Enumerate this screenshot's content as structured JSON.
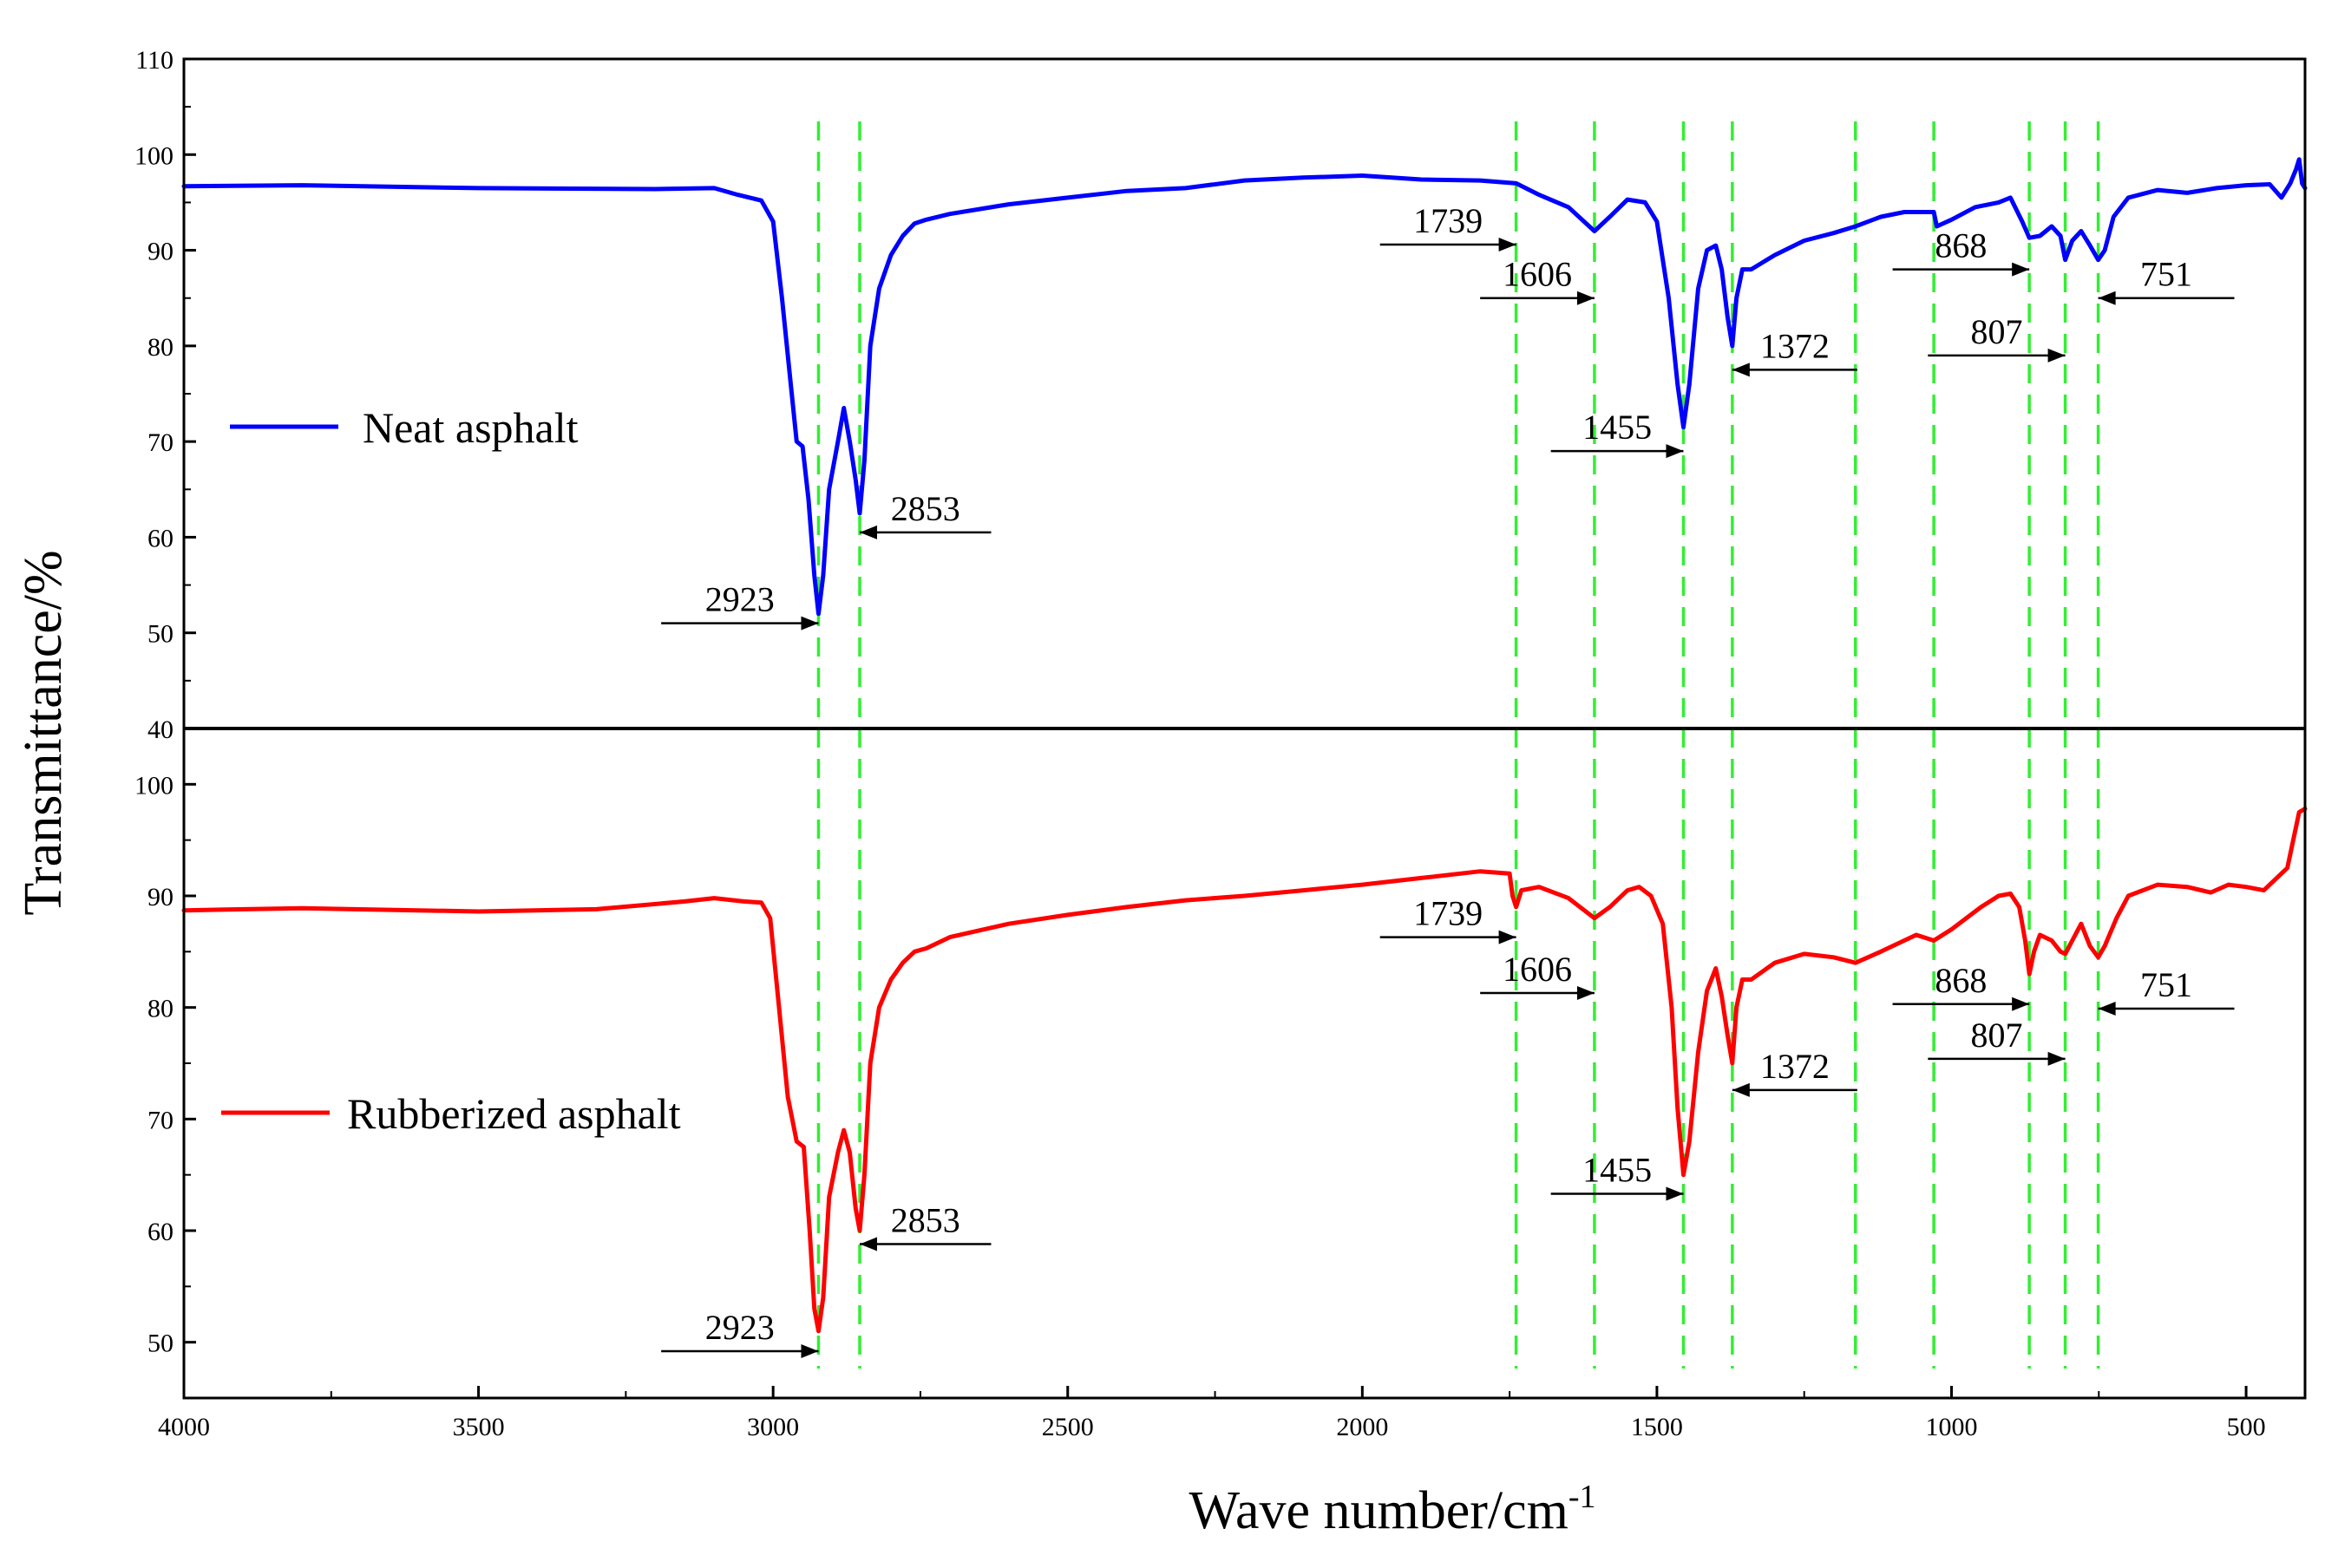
{
  "chart_data": {
    "type": "line",
    "xlabel": "Wave number/cm",
    "xlabel_sup": "-1",
    "ylabel": "Transmittance/%",
    "xlim": [
      4000,
      400
    ],
    "xticks": [
      "4000",
      "3500",
      "3000",
      "2500",
      "2000",
      "1500",
      "1000",
      "500"
    ],
    "marker_lines": [
      2923,
      2853,
      1739,
      1606,
      1455,
      1372,
      1163,
      1030,
      868,
      807,
      751
    ],
    "colors": {
      "neat": "#0000ff",
      "rubberized": "#ff0000",
      "marker": "#33ee33",
      "axis": "#000000"
    },
    "panels": [
      {
        "name": "top",
        "ylim": [
          40,
          110
        ],
        "yticks": [
          "40",
          "50",
          "60",
          "70",
          "80",
          "90",
          "100",
          "110"
        ],
        "series": {
          "name": "Neat asphalt",
          "color": "#0000ff",
          "points": [
            [
              4000,
              96.7
            ],
            [
              3800,
              96.8
            ],
            [
              3500,
              96.5
            ],
            [
              3200,
              96.4
            ],
            [
              3100,
              96.5
            ],
            [
              3060,
              95.8
            ],
            [
              3020,
              95.2
            ],
            [
              3000,
              93.0
            ],
            [
              2985,
              85.0
            ],
            [
              2970,
              76.0
            ],
            [
              2960,
              70.0
            ],
            [
              2950,
              69.5
            ],
            [
              2940,
              64.0
            ],
            [
              2930,
              56.0
            ],
            [
              2923,
              52.0
            ],
            [
              2915,
              56.0
            ],
            [
              2905,
              65.0
            ],
            [
              2890,
              70.0
            ],
            [
              2880,
              73.5
            ],
            [
              2870,
              70.0
            ],
            [
              2860,
              66.0
            ],
            [
              2853,
              62.5
            ],
            [
              2845,
              68.0
            ],
            [
              2835,
              80.0
            ],
            [
              2820,
              86.0
            ],
            [
              2800,
              89.5
            ],
            [
              2780,
              91.5
            ],
            [
              2760,
              92.8
            ],
            [
              2740,
              93.2
            ],
            [
              2700,
              93.8
            ],
            [
              2600,
              94.8
            ],
            [
              2500,
              95.5
            ],
            [
              2400,
              96.2
            ],
            [
              2300,
              96.5
            ],
            [
              2200,
              97.3
            ],
            [
              2100,
              97.6
            ],
            [
              2000,
              97.8
            ],
            [
              1900,
              97.4
            ],
            [
              1800,
              97.3
            ],
            [
              1739,
              97.0
            ],
            [
              1700,
              95.8
            ],
            [
              1650,
              94.5
            ],
            [
              1606,
              92.0
            ],
            [
              1580,
              93.5
            ],
            [
              1550,
              95.3
            ],
            [
              1520,
              95.0
            ],
            [
              1500,
              93.0
            ],
            [
              1480,
              85.0
            ],
            [
              1465,
              76.0
            ],
            [
              1455,
              71.5
            ],
            [
              1445,
              76.0
            ],
            [
              1430,
              86.0
            ],
            [
              1415,
              90.0
            ],
            [
              1400,
              90.5
            ],
            [
              1390,
              88.0
            ],
            [
              1380,
              83.0
            ],
            [
              1372,
              80.0
            ],
            [
              1365,
              85.0
            ],
            [
              1355,
              88.0
            ],
            [
              1340,
              88.0
            ],
            [
              1300,
              89.5
            ],
            [
              1250,
              91.0
            ],
            [
              1200,
              91.8
            ],
            [
              1163,
              92.5
            ],
            [
              1120,
              93.5
            ],
            [
              1080,
              94.0
            ],
            [
              1030,
              94.0
            ],
            [
              1025,
              92.5
            ],
            [
              1000,
              93.2
            ],
            [
              960,
              94.5
            ],
            [
              920,
              95.0
            ],
            [
              900,
              95.5
            ],
            [
              880,
              93.0
            ],
            [
              868,
              91.3
            ],
            [
              850,
              91.5
            ],
            [
              830,
              92.5
            ],
            [
              815,
              91.5
            ],
            [
              807,
              89.0
            ],
            [
              795,
              91.0
            ],
            [
              780,
              92.0
            ],
            [
              765,
              90.5
            ],
            [
              751,
              89.0
            ],
            [
              740,
              90.0
            ],
            [
              725,
              93.5
            ],
            [
              700,
              95.5
            ],
            [
              650,
              96.3
            ],
            [
              600,
              96.0
            ],
            [
              550,
              96.5
            ],
            [
              500,
              96.8
            ],
            [
              460,
              96.9
            ],
            [
              440,
              95.5
            ],
            [
              425,
              97.0
            ],
            [
              415,
              98.5
            ],
            [
              410,
              99.5
            ],
            [
              405,
              97.0
            ],
            [
              400,
              96.5
            ]
          ]
        },
        "annotations": [
          {
            "label": "2923",
            "wn": 2923,
            "y": 51.0,
            "dir": "right",
            "tail_wn": 3190
          },
          {
            "label": "2853",
            "wn": 2853,
            "y": 60.5,
            "dir": "left",
            "tail_wn": 2630
          },
          {
            "label": "1739",
            "wn": 1739,
            "y": 90.6,
            "dir": "right",
            "tail_wn": 1970
          },
          {
            "label": "1606",
            "wn": 1606,
            "y": 85.0,
            "dir": "right",
            "tail_wn": 1800
          },
          {
            "label": "1455",
            "wn": 1455,
            "y": 69.0,
            "dir": "right",
            "tail_wn": 1680
          },
          {
            "label": "1372",
            "wn": 1372,
            "y": 77.5,
            "dir": "left",
            "tail_wn": 1160
          },
          {
            "label": "868",
            "wn": 868,
            "y": 88.0,
            "dir": "right",
            "tail_wn": 1100
          },
          {
            "label": "807",
            "wn": 807,
            "y": 79.0,
            "dir": "right",
            "tail_wn": 1040
          },
          {
            "label": "751",
            "wn": 751,
            "y": 85.0,
            "dir": "left",
            "tail_wn": 520
          }
        ]
      },
      {
        "name": "bottom",
        "ylim": [
          45,
          105
        ],
        "yticks": [
          "50",
          "60",
          "70",
          "80",
          "90",
          "100"
        ],
        "series": {
          "name": "Rubberized asphalt",
          "color": "#ff0000",
          "points": [
            [
              4000,
              88.7
            ],
            [
              3800,
              88.9
            ],
            [
              3500,
              88.6
            ],
            [
              3300,
              88.8
            ],
            [
              3150,
              89.5
            ],
            [
              3100,
              89.8
            ],
            [
              3050,
              89.5
            ],
            [
              3020,
              89.4
            ],
            [
              3005,
              88.0
            ],
            [
              2990,
              80.0
            ],
            [
              2975,
              72.0
            ],
            [
              2960,
              68.0
            ],
            [
              2948,
              67.5
            ],
            [
              2938,
              60.0
            ],
            [
              2930,
              53.0
            ],
            [
              2923,
              51.0
            ],
            [
              2915,
              54.0
            ],
            [
              2905,
              63.0
            ],
            [
              2890,
              67.0
            ],
            [
              2880,
              69.0
            ],
            [
              2870,
              67.0
            ],
            [
              2860,
              62.0
            ],
            [
              2853,
              60.0
            ],
            [
              2845,
              65.0
            ],
            [
              2835,
              75.0
            ],
            [
              2820,
              80.0
            ],
            [
              2800,
              82.5
            ],
            [
              2780,
              84.0
            ],
            [
              2760,
              85.0
            ],
            [
              2740,
              85.3
            ],
            [
              2700,
              86.3
            ],
            [
              2600,
              87.5
            ],
            [
              2500,
              88.3
            ],
            [
              2400,
              89.0
            ],
            [
              2300,
              89.6
            ],
            [
              2200,
              90.0
            ],
            [
              2100,
              90.5
            ],
            [
              2000,
              91.0
            ],
            [
              1900,
              91.6
            ],
            [
              1800,
              92.2
            ],
            [
              1750,
              92.0
            ],
            [
              1745,
              90.0
            ],
            [
              1739,
              89.0
            ],
            [
              1730,
              90.5
            ],
            [
              1700,
              90.8
            ],
            [
              1650,
              89.8
            ],
            [
              1606,
              88.0
            ],
            [
              1580,
              89.0
            ],
            [
              1550,
              90.5
            ],
            [
              1530,
              90.8
            ],
            [
              1510,
              90.0
            ],
            [
              1490,
              87.5
            ],
            [
              1475,
              80.0
            ],
            [
              1465,
              71.0
            ],
            [
              1455,
              65.0
            ],
            [
              1445,
              68.0
            ],
            [
              1430,
              76.0
            ],
            [
              1415,
              81.5
            ],
            [
              1400,
              83.5
            ],
            [
              1390,
              81.0
            ],
            [
              1380,
              77.5
            ],
            [
              1372,
              75.0
            ],
            [
              1365,
              80.0
            ],
            [
              1355,
              82.5
            ],
            [
              1340,
              82.5
            ],
            [
              1300,
              84.0
            ],
            [
              1250,
              84.8
            ],
            [
              1200,
              84.5
            ],
            [
              1163,
              84.0
            ],
            [
              1120,
              85.0
            ],
            [
              1060,
              86.5
            ],
            [
              1030,
              86.0
            ],
            [
              1000,
              87.0
            ],
            [
              950,
              89.0
            ],
            [
              920,
              90.0
            ],
            [
              900,
              90.2
            ],
            [
              885,
              89.0
            ],
            [
              875,
              86.0
            ],
            [
              868,
              83.0
            ],
            [
              860,
              85.0
            ],
            [
              850,
              86.5
            ],
            [
              830,
              86.0
            ],
            [
              815,
              85.0
            ],
            [
              807,
              84.8
            ],
            [
              795,
              86.0
            ],
            [
              780,
              87.5
            ],
            [
              765,
              85.5
            ],
            [
              751,
              84.5
            ],
            [
              740,
              85.5
            ],
            [
              720,
              88.0
            ],
            [
              700,
              90.0
            ],
            [
              650,
              91.0
            ],
            [
              600,
              90.8
            ],
            [
              560,
              90.3
            ],
            [
              530,
              91.0
            ],
            [
              500,
              90.8
            ],
            [
              470,
              90.5
            ],
            [
              450,
              91.5
            ],
            [
              430,
              92.5
            ],
            [
              420,
              95.0
            ],
            [
              410,
              97.5
            ],
            [
              400,
              97.8
            ]
          ]
        },
        "annotations": [
          {
            "label": "2923",
            "wn": 2923,
            "y": 49.2,
            "dir": "right",
            "tail_wn": 3190
          },
          {
            "label": "2853",
            "wn": 2853,
            "y": 58.8,
            "dir": "left",
            "tail_wn": 2630
          },
          {
            "label": "1739",
            "wn": 1739,
            "y": 86.3,
            "dir": "right",
            "tail_wn": 1970
          },
          {
            "label": "1606",
            "wn": 1606,
            "y": 81.3,
            "dir": "right",
            "tail_wn": 1800
          },
          {
            "label": "1455",
            "wn": 1455,
            "y": 63.3,
            "dir": "right",
            "tail_wn": 1680
          },
          {
            "label": "1372",
            "wn": 1372,
            "y": 72.6,
            "dir": "left",
            "tail_wn": 1160
          },
          {
            "label": "868",
            "wn": 868,
            "y": 80.3,
            "dir": "right",
            "tail_wn": 1100
          },
          {
            "label": "807",
            "wn": 807,
            "y": 75.4,
            "dir": "right",
            "tail_wn": 1040
          },
          {
            "label": "751",
            "wn": 751,
            "y": 79.9,
            "dir": "left",
            "tail_wn": 520
          }
        ]
      }
    ]
  }
}
